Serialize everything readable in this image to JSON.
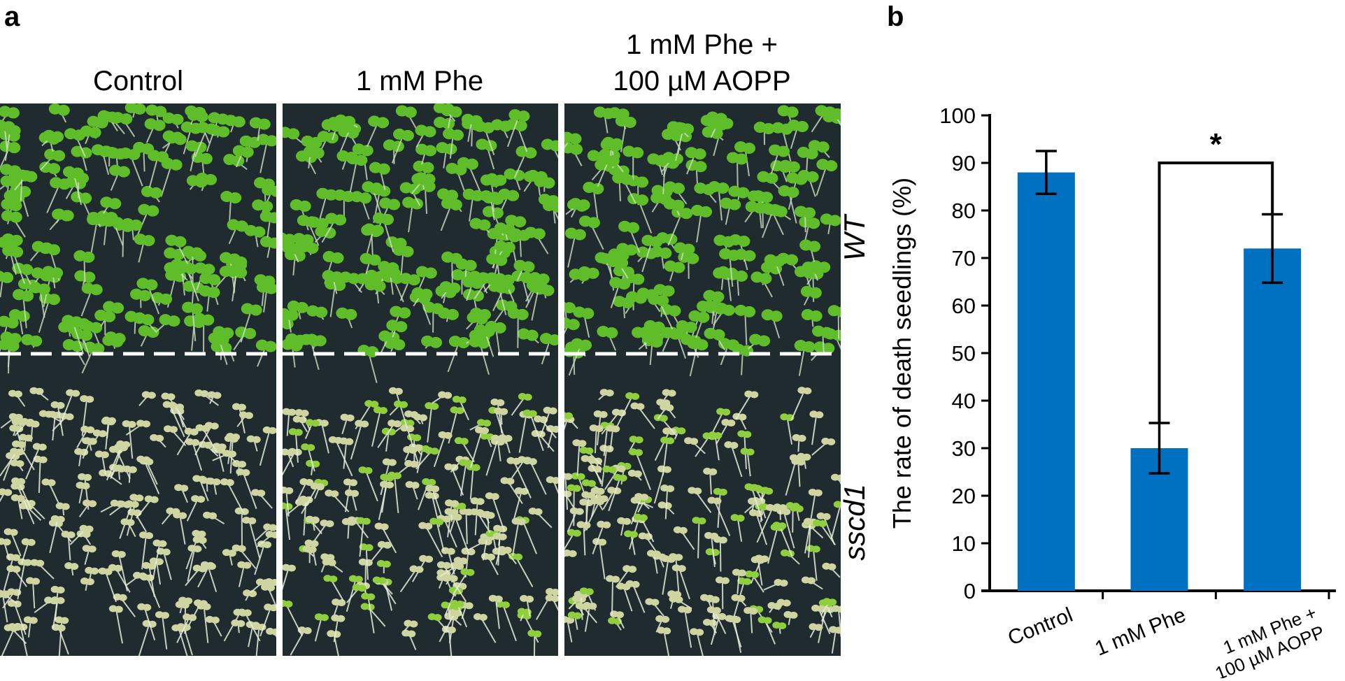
{
  "panel_a": {
    "letter": "a",
    "columns": [
      "Control",
      "1 mM Phe",
      "1 mM Phe +\n100 µM AOPP"
    ],
    "rows": [
      "WT",
      "sscd1"
    ],
    "colors": {
      "background": "#1f2b2e",
      "wt_leaf": "#5fbd2a",
      "sscd1_leaf": "#cfd5a0",
      "divider": "#ffffff"
    }
  },
  "panel_b": {
    "letter": "b"
  },
  "chart_data": {
    "type": "bar",
    "categories": [
      "Control",
      "1 mM Phe",
      "1 mM Phe +\n100 µM AOPP"
    ],
    "values": [
      88,
      30,
      72
    ],
    "errors": [
      4.5,
      5.3,
      7.2
    ],
    "ylabel": "The rate of death seedlings (%)",
    "xlabel": "",
    "ylim": [
      0,
      100
    ],
    "yticks": [
      0,
      10,
      20,
      30,
      40,
      50,
      60,
      70,
      80,
      90,
      100
    ],
    "bar_color": "#0070c0",
    "significance": {
      "from": 1,
      "to": 2,
      "label": "*"
    },
    "grid": false
  }
}
